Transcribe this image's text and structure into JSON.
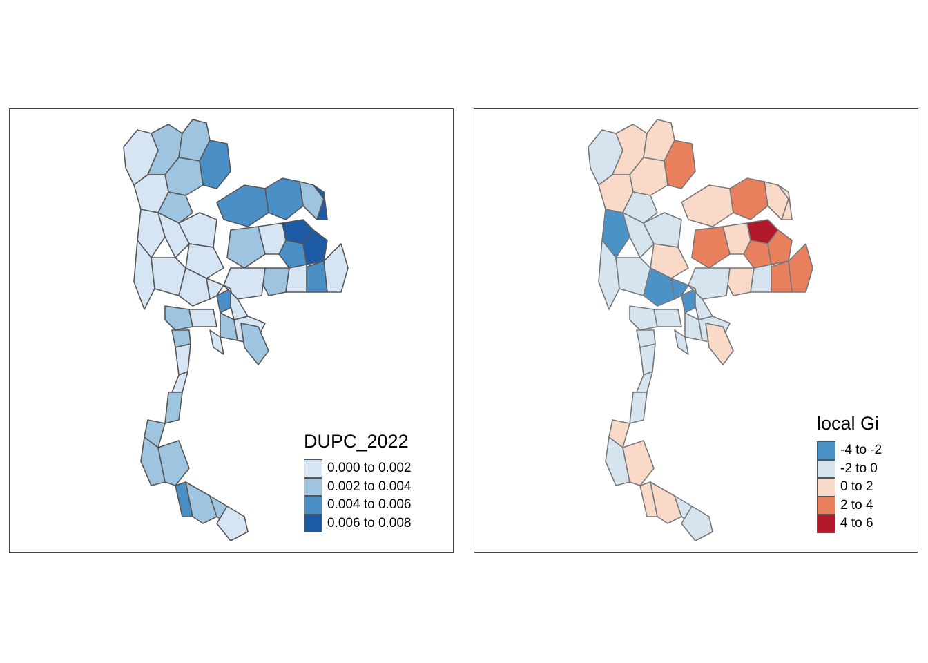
{
  "maps": [
    {
      "legend": {
        "title": "DUPC_2022",
        "items": [
          {
            "label": "0.000 to 0.002",
            "color": "#d6e5f3"
          },
          {
            "label": "0.002 to 0.004",
            "color": "#9ec4e0"
          },
          {
            "label": "0.004 to 0.006",
            "color": "#4a90c6"
          },
          {
            "label": "0.006 to 0.008",
            "color": "#1c5aa6"
          }
        ]
      },
      "border_color": "#555555"
    },
    {
      "legend": {
        "title": "local Gi",
        "items": [
          {
            "label": "-4 to -2",
            "color": "#4b92c7"
          },
          {
            "label": "-2 to 0",
            "color": "#d5e4ef"
          },
          {
            "label": "0 to 2",
            "color": "#f9d9c8"
          },
          {
            "label": "2 to 4",
            "color": "#e8805e"
          },
          {
            "label": "4 to 6",
            "color": "#b1182b"
          }
        ]
      },
      "border_color": "#777777"
    }
  ]
}
